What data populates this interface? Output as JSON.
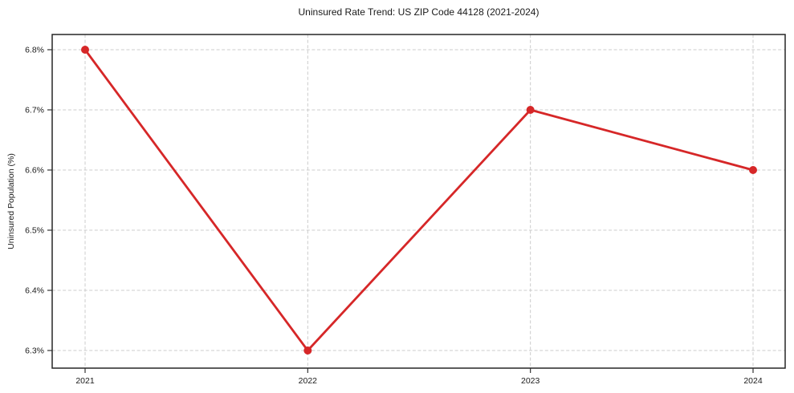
{
  "chart_data": {
    "type": "line",
    "title": "Uninsured Rate Trend: US ZIP Code 44128 (2021-2024)",
    "ylabel": "Uninsured Population (%)",
    "xlabel": "",
    "categories": [
      "2021",
      "2022",
      "2023",
      "2024"
    ],
    "values": [
      6.8,
      6.3,
      6.7,
      6.6
    ],
    "yticks": [
      6.3,
      6.4,
      6.5,
      6.6,
      6.7,
      6.8
    ],
    "ytick_labels": [
      "6.3%",
      "6.4%",
      "6.5%",
      "6.6%",
      "6.7%",
      "6.8%"
    ],
    "ylim": [
      6.2707,
      6.8253
    ],
    "grid": "dashed",
    "legend": "none",
    "colors": {
      "line": "#d62728",
      "marker": "#d62728",
      "grid": "#cccccc",
      "frame": "#262626",
      "tick": "#333333",
      "text": "#1a1a1a"
    }
  }
}
